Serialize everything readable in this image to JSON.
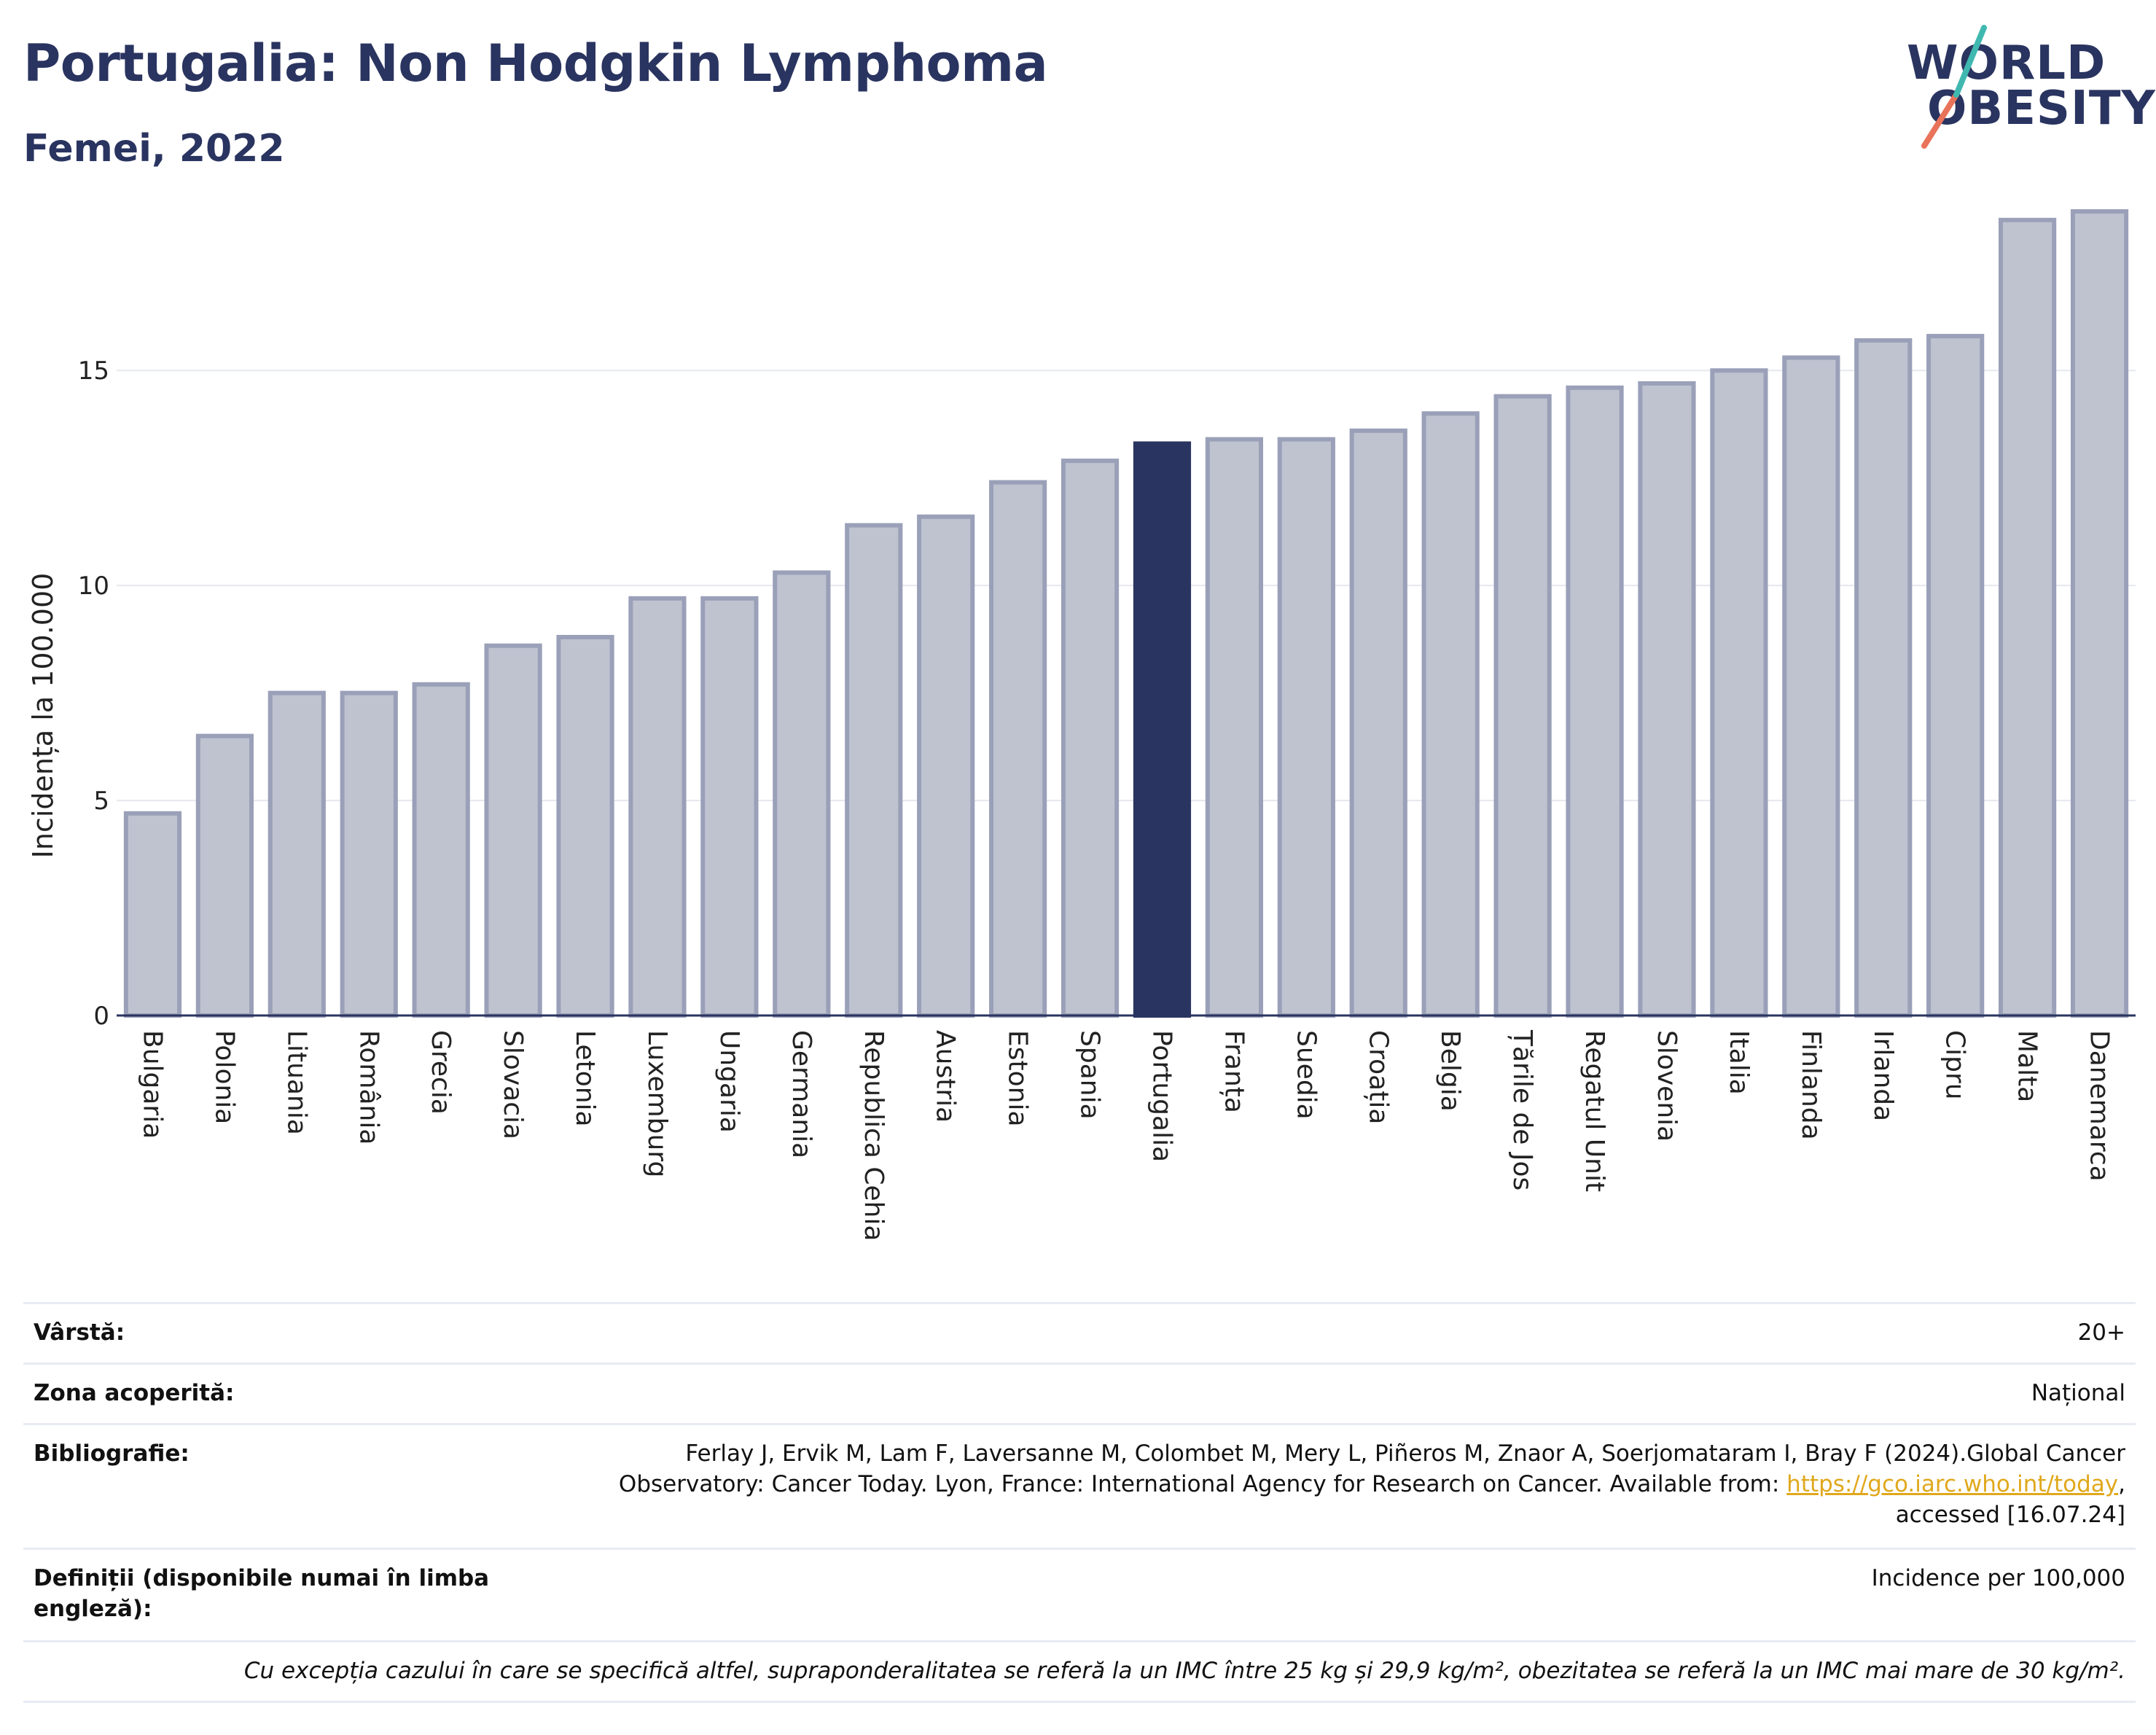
{
  "header": {
    "title": "Portugalia: Non Hodgkin Lymphoma",
    "subtitle": "Femei, 2022"
  },
  "logo": {
    "line1": "WORLD",
    "line2": "OBESITY"
  },
  "colors": {
    "bar_default": "#bfc3d0",
    "bar_border": "#9aa0b8",
    "bar_highlight": "#2a3460",
    "text": "#2a3460"
  },
  "chart_data": {
    "type": "bar",
    "ylabel": "Incidența la 100.000",
    "xlabel": "",
    "ylim": [
      0,
      18.7
    ],
    "yticks": [
      0,
      5,
      10,
      15
    ],
    "grid": true,
    "highlight": "Portugalia",
    "categories": [
      "Bulgaria",
      "Polonia",
      "Lituania",
      "România",
      "Grecia",
      "Slovacia",
      "Letonia",
      "Luxemburg",
      "Ungaria",
      "Germania",
      "Republica Cehia",
      "Austria",
      "Estonia",
      "Spania",
      "Portugalia",
      "Franța",
      "Suedia",
      "Croația",
      "Belgia",
      "Țările de Jos",
      "Regatul Unit",
      "Slovenia",
      "Italia",
      "Finlanda",
      "Irlanda",
      "Cipru",
      "Malta",
      "Danemarca"
    ],
    "values": [
      4.7,
      6.5,
      7.5,
      7.5,
      7.7,
      8.6,
      8.8,
      9.7,
      9.7,
      10.3,
      11.4,
      11.6,
      12.4,
      12.9,
      13.3,
      13.4,
      13.4,
      13.6,
      14.0,
      14.4,
      14.6,
      14.7,
      15.0,
      15.3,
      15.7,
      15.8,
      18.5,
      18.7
    ]
  },
  "info": {
    "age_label": "Vârstă:",
    "age_value": "20+",
    "area_label": "Zona acoperită:",
    "area_value": "Național",
    "bib_label": "Bibliografie:",
    "bib_line1": "Ferlay J, Ervik M, Lam F, Laversanne M, Colombet M, Mery L, Piñeros M, Znaor A, Soerjomataram I, Bray F (2024).Global Cancer",
    "bib_line2_pre": "Observatory: Cancer Today. Lyon, France: International Agency for Research on Cancer. Available from: ",
    "bib_link": "https://gco.iarc.who.int/today",
    "bib_line2_post": ",",
    "bib_line3": "accessed [16.07.24]",
    "def_label": "Definiții (disponibile numai în limba engleză):",
    "def_value": "Incidence per 100,000",
    "note": "Cu excepția cazului în care se specifică altfel, supraponderalitatea se referă la un IMC între 25 kg și 29,9 kg/m², obezitatea se referă la un IMC mai mare de 30 kg/m²."
  }
}
